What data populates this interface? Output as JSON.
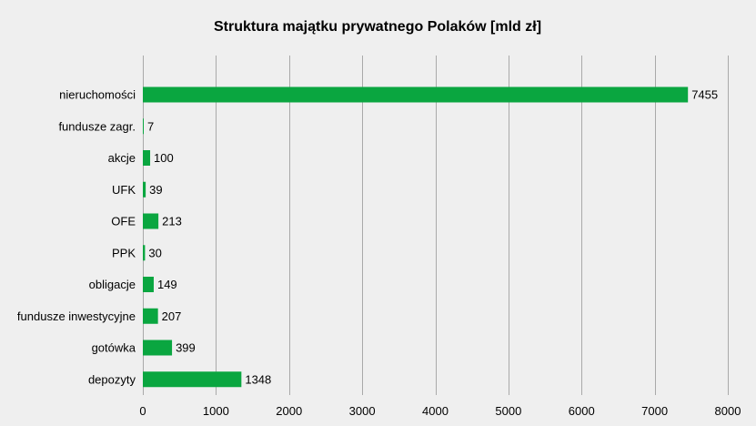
{
  "chart_data": {
    "type": "bar",
    "orientation": "horizontal",
    "title": "Struktura majątku prywatnego Polaków [mld zł]",
    "xlabel": "",
    "ylabel": "",
    "categories": [
      "nieruchomości",
      "fundusze zagr.",
      "akcje",
      "UFK",
      "OFE",
      "PPK",
      "obligacje",
      "fundusze inwestycyjne",
      "gotówka",
      "depozyty"
    ],
    "values": [
      7455,
      7,
      100,
      39,
      213,
      30,
      149,
      207,
      399,
      1348
    ],
    "value_labels": [
      "7455",
      "7",
      "100",
      "39",
      "213",
      "30",
      "149",
      "207",
      "399",
      "1348"
    ],
    "xlim": [
      0,
      8000
    ],
    "x_ticks": [
      0,
      1000,
      2000,
      3000,
      4000,
      5000,
      6000,
      7000,
      8000
    ],
    "x_tick_labels": [
      "0",
      "1000",
      "2000",
      "3000",
      "4000",
      "5000",
      "6000",
      "7000",
      "8000"
    ],
    "grid": "vertical",
    "legend": "none",
    "bar_color": "#0aa640",
    "grid_color": "#a9a9a9",
    "background_color": "#efefef"
  }
}
